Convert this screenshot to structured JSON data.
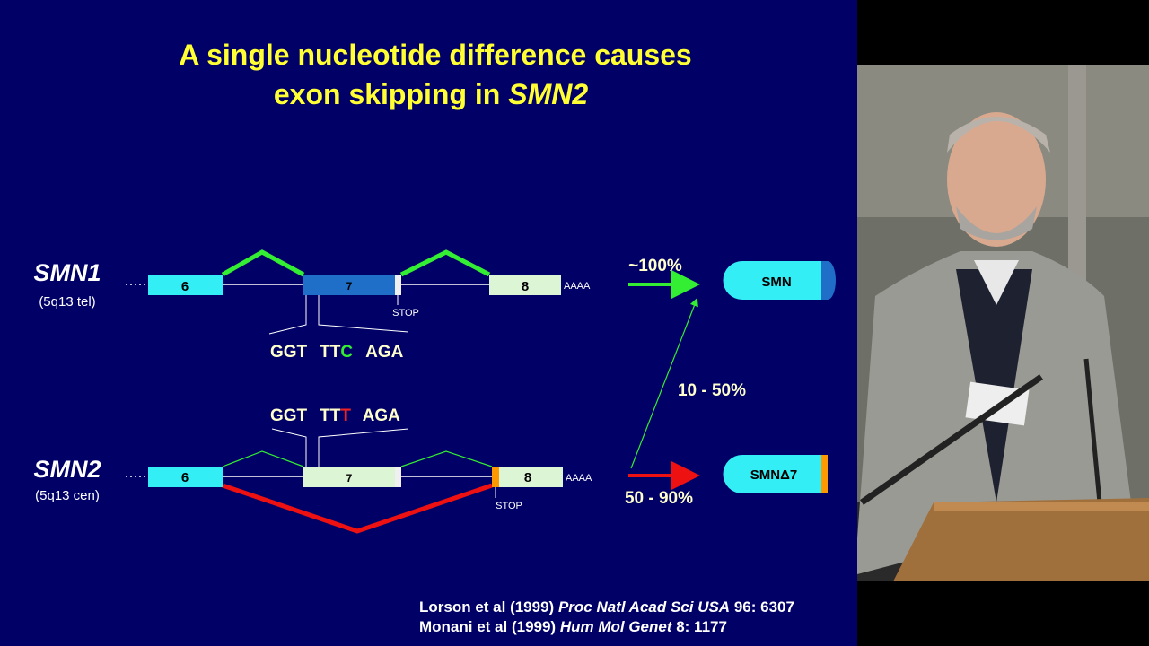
{
  "slide": {
    "title": {
      "line1": "A single nucleotide difference causes",
      "line2": "exon skipping in ",
      "line2_italic": "SMN2"
    },
    "smn1": {
      "name": "SMN1",
      "locus": "(5q13 tel)",
      "exons": [
        "6",
        "7",
        "8"
      ],
      "polya": "AAAA",
      "stop": "STOP",
      "codons": [
        "GGT",
        "TT",
        "C",
        "AGA"
      ]
    },
    "smn2": {
      "name": "SMN2",
      "locus": "(5q13 cen)",
      "exons": [
        "6",
        "7",
        "8"
      ],
      "polya": "AAAA",
      "stop": "STOP",
      "codons": [
        "GGT",
        "TT",
        "T",
        "AGA"
      ]
    },
    "arrows": {
      "smn1_full": "~100%",
      "smn2_full": "10 - 50%",
      "smn2_skip": "50 - 90%"
    },
    "products": {
      "full": "SMN",
      "skipped": "SMNΔ7"
    },
    "references": [
      {
        "authors": "Lorson et al (1999) ",
        "journal": "Proc Natl Acad Sci USA",
        "cite": " 96: 6307"
      },
      {
        "authors": "Monani et al (1999) ",
        "journal": "Hum Mol Genet",
        "cite": " 8: 1177"
      }
    ]
  }
}
